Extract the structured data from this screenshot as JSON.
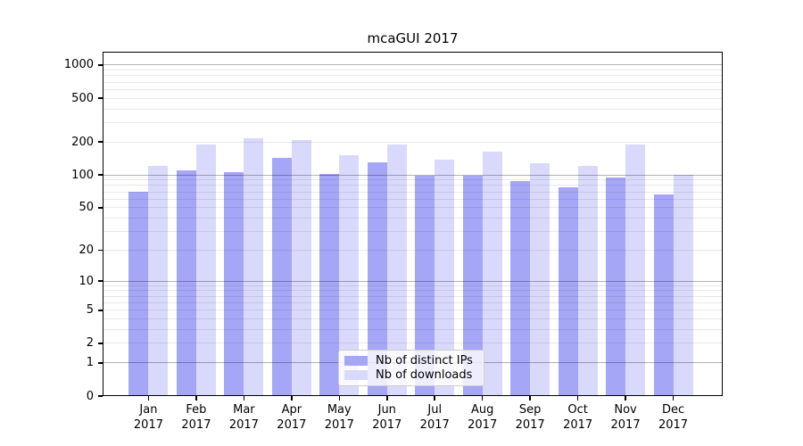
{
  "chart_data": {
    "type": "bar",
    "title": "mcaGUI 2017",
    "categories": [
      "Jan 2017",
      "Feb 2017",
      "Mar 2017",
      "Apr 2017",
      "May 2017",
      "Jun 2017",
      "Jul 2017",
      "Aug 2017",
      "Sep 2017",
      "Oct 2017",
      "Nov 2017",
      "Dec 2017"
    ],
    "series": [
      {
        "name": "Nb of distinct IPs",
        "color": "#a6a6f7",
        "values": [
          70,
          111,
          106,
          144,
          102,
          130,
          98,
          99,
          88,
          77,
          95,
          66
        ]
      },
      {
        "name": "Nb of downloads",
        "color": "#d9d9fb",
        "values": [
          122,
          188,
          215,
          210,
          150,
          191,
          137,
          162,
          127,
          122,
          188,
          100
        ]
      }
    ],
    "xlabel": "",
    "ylabel": "",
    "yscale": "log1p",
    "ylim": [
      0,
      1320
    ],
    "yticks": [
      0,
      1,
      2,
      5,
      10,
      20,
      50,
      100,
      200,
      500,
      1000
    ],
    "grid": true,
    "grid_major_at": [
      1,
      10,
      100,
      1000
    ],
    "legend_position": "lower center",
    "colors": {
      "grid_major": "rgba(0,0,0,0.30)",
      "grid_minor": "rgba(0,0,0,0.09)",
      "axis": "#000000",
      "background": "#ffffff"
    }
  }
}
